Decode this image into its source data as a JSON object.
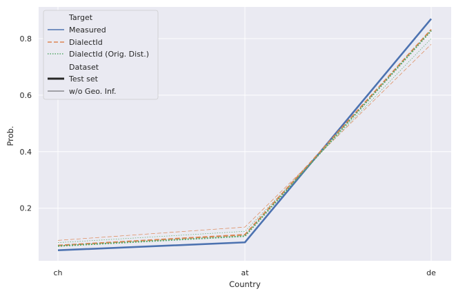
{
  "chart_data": {
    "type": "line",
    "title": "",
    "xlabel": "Country",
    "ylabel": "Prob.",
    "categories": [
      "ch",
      "at",
      "de"
    ],
    "ylim": [
      0.0,
      0.9
    ],
    "yticks": [
      0.2,
      0.4,
      0.6,
      0.8
    ],
    "ytick_labels": [
      "0.2",
      "0.4",
      "0.6",
      "0.8"
    ],
    "grid": true,
    "legend_position": "top-left",
    "legend": {
      "target_title": "Target",
      "dataset_title": "Dataset",
      "targets": [
        {
          "name": "Measured",
          "color": "#4c72b0",
          "dash": "solid"
        },
        {
          "name": "DialectId",
          "color": "#dd8452",
          "dash": "dashed"
        },
        {
          "name": "DialectId (Orig. Dist.)",
          "color": "#55a868",
          "dash": "dotted"
        }
      ],
      "datasets": [
        {
          "name": "Test set",
          "weight": "thick"
        },
        {
          "name": "w/o Geo. Inf.",
          "weight": "thin"
        }
      ]
    },
    "series": [
      {
        "name": "Measured — Test set",
        "target": "Measured",
        "dataset": "Test set",
        "values": [
          0.051,
          0.079,
          0.87
        ]
      },
      {
        "name": "DialectId — Test set",
        "target": "DialectId",
        "dataset": "Test set",
        "values": [
          0.068,
          0.106,
          0.832
        ]
      },
      {
        "name": "DialectId (Orig. Dist.) — Test set",
        "target": "DialectId (Orig. Dist.)",
        "dataset": "Test set",
        "values": [
          0.066,
          0.101,
          0.828
        ]
      },
      {
        "name": "DialectId — w/o Geo. Inf.",
        "target": "DialectId",
        "dataset": "w/o Geo. Inf.",
        "values": [
          0.086,
          0.133,
          0.78
        ]
      },
      {
        "name": "DialectId (Orig. Dist.) — w/o Geo. Inf.",
        "target": "DialectId (Orig. Dist.)",
        "dataset": "w/o Geo. Inf.",
        "values": [
          0.078,
          0.118,
          0.8
        ]
      }
    ],
    "colors": {
      "background": "#eaeaf2",
      "grid": "#ffffff",
      "text": "#262626"
    }
  }
}
